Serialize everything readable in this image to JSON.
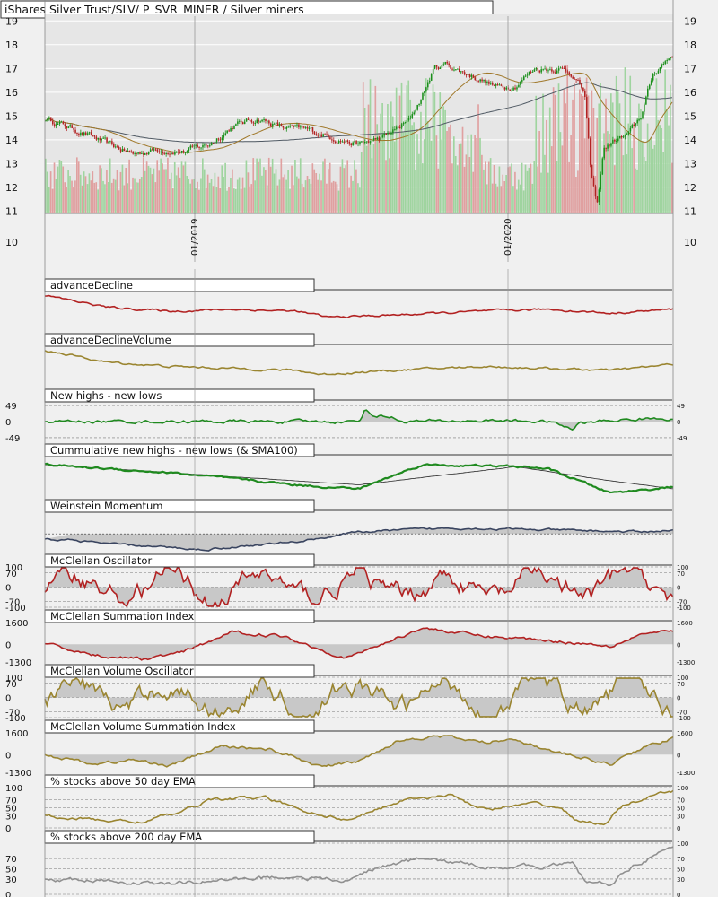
{
  "window_title": "iShares Silver Trust/SLV/ P_SVR_MINER / Silver miners",
  "colors": {
    "background": "#f0f0f0",
    "plot_background": "#e6e6e6",
    "up_candle": "#1a8f1a",
    "down_candle": "#b22222",
    "volume_up": "#9fd49f",
    "volume_down": "#e0a0a0",
    "sma_short": "#a0782a",
    "sma_long": "#505a64",
    "red_line": "#b22222",
    "olive_line": "#9a8530",
    "green_line": "#1f8a1f",
    "navy_line": "#3a4560",
    "gray_line": "#909090",
    "fill": "#c8c8c8"
  },
  "chart_data": [
    {
      "type": "candlestick",
      "name": "price",
      "y_ticks": [
        "19",
        "18",
        "17",
        "16",
        "15",
        "14",
        "13",
        "12",
        "11",
        "10"
      ],
      "ylim": [
        10,
        19.5
      ],
      "x_date_labels": [
        "01/2019",
        "01/2020"
      ],
      "overlays": [
        "SMA short",
        "SMA long",
        "volume bars"
      ],
      "close_keypoints": [
        [
          0,
          14.9
        ],
        [
          3,
          14.6
        ],
        [
          6,
          14.3
        ],
        [
          10,
          13.8
        ],
        [
          14,
          13.4
        ],
        [
          18,
          13.6
        ],
        [
          22,
          13.5
        ],
        [
          26,
          13.8
        ],
        [
          30,
          14.6
        ],
        [
          34,
          14.9
        ],
        [
          38,
          14.5
        ],
        [
          42,
          14.4
        ],
        [
          46,
          14.1
        ],
        [
          50,
          13.8
        ],
        [
          54,
          14.1
        ],
        [
          58,
          14.8
        ],
        [
          60,
          15.8
        ],
        [
          62,
          17.0
        ],
        [
          64,
          17.2
        ],
        [
          66,
          16.9
        ],
        [
          69,
          16.6
        ],
        [
          72,
          16.2
        ],
        [
          75,
          16.3
        ],
        [
          78,
          17.0
        ],
        [
          82,
          17.0
        ],
        [
          84,
          16.8
        ],
        [
          86,
          16.0
        ],
        [
          87,
          12.6
        ],
        [
          88,
          11.2
        ],
        [
          89,
          13.6
        ],
        [
          91,
          14.0
        ],
        [
          93,
          14.2
        ],
        [
          95,
          15.0
        ],
        [
          97,
          16.8
        ],
        [
          100,
          17.6
        ]
      ]
    },
    {
      "type": "line",
      "name": "advanceDecline",
      "title": "advanceDecline",
      "keypoints": [
        [
          0,
          0.9
        ],
        [
          10,
          0.6
        ],
        [
          20,
          0.5
        ],
        [
          30,
          0.55
        ],
        [
          40,
          0.5
        ],
        [
          45,
          0.35
        ],
        [
          55,
          0.4
        ],
        [
          70,
          0.5
        ],
        [
          80,
          0.55
        ],
        [
          90,
          0.45
        ],
        [
          100,
          0.55
        ]
      ]
    },
    {
      "type": "line",
      "name": "advanceDeclineVolume",
      "title": "advanceDeclineVolume",
      "keypoints": [
        [
          0,
          0.9
        ],
        [
          10,
          0.6
        ],
        [
          20,
          0.5
        ],
        [
          30,
          0.45
        ],
        [
          40,
          0.4
        ],
        [
          44,
          0.3
        ],
        [
          55,
          0.4
        ],
        [
          70,
          0.5
        ],
        [
          80,
          0.45
        ],
        [
          90,
          0.4
        ],
        [
          100,
          0.55
        ]
      ]
    },
    {
      "type": "area",
      "name": "new_highs_new_lows",
      "title": "New highs - new lows",
      "y_ticks_left": [
        "49",
        "0",
        "-49"
      ],
      "y_ticks_right": [
        "49",
        "0",
        "-49"
      ],
      "ylim": [
        -60,
        60
      ],
      "keypoints": [
        [
          0,
          0
        ],
        [
          50,
          0
        ],
        [
          51,
          40
        ],
        [
          52,
          20
        ],
        [
          55,
          15
        ],
        [
          57,
          0
        ],
        [
          72,
          3
        ],
        [
          80,
          0
        ],
        [
          82,
          -10
        ],
        [
          84,
          -25
        ],
        [
          85,
          -5
        ],
        [
          88,
          0
        ],
        [
          92,
          5
        ],
        [
          95,
          8
        ],
        [
          100,
          10
        ]
      ]
    },
    {
      "type": "line",
      "name": "cumulative_new_highs_new_lows",
      "title": "Cummulative new highs - new lows (& SMA100)",
      "keypoints": [
        [
          0,
          0.8
        ],
        [
          20,
          0.6
        ],
        [
          40,
          0.3
        ],
        [
          50,
          0.2
        ],
        [
          55,
          0.5
        ],
        [
          60,
          0.8
        ],
        [
          75,
          0.75
        ],
        [
          80,
          0.7
        ],
        [
          85,
          0.4
        ],
        [
          90,
          0.1
        ],
        [
          100,
          0.25
        ]
      ],
      "sma_keypoints": [
        [
          0,
          0.8
        ],
        [
          30,
          0.5
        ],
        [
          50,
          0.3
        ],
        [
          75,
          0.75
        ],
        [
          90,
          0.4
        ],
        [
          100,
          0.2
        ]
      ]
    },
    {
      "type": "area",
      "name": "weinstein_momentum",
      "title": "Weinstein Momentum",
      "keypoints": [
        [
          4,
          0.3
        ],
        [
          10,
          0.2
        ],
        [
          25,
          0.05
        ],
        [
          40,
          0.25
        ],
        [
          50,
          0.5
        ],
        [
          65,
          0.6
        ],
        [
          80,
          0.55
        ],
        [
          95,
          0.5
        ],
        [
          100,
          0.55
        ]
      ]
    },
    {
      "type": "oscillator",
      "name": "mcclellan_oscillator",
      "title": "McClellan Oscillator",
      "y_ticks_left": [
        "100",
        "70",
        "0",
        "-70",
        "-100"
      ],
      "y_ticks_right": [
        "100",
        "70",
        "0",
        "-70",
        "-100"
      ],
      "ylim": [
        -100,
        100
      ]
    },
    {
      "type": "area",
      "name": "mcclellan_summation_index",
      "title": "McClellan Summation Index",
      "y_ticks_left": [
        "1600",
        "0",
        "-1300"
      ],
      "y_ticks_right": [
        "1600",
        "0",
        "-1300"
      ],
      "ylim": [
        -1300,
        1600
      ],
      "keypoints": [
        [
          0,
          0
        ],
        [
          8,
          -800
        ],
        [
          16,
          -1100
        ],
        [
          22,
          -600
        ],
        [
          30,
          900
        ],
        [
          38,
          600
        ],
        [
          44,
          -400
        ],
        [
          48,
          -1000
        ],
        [
          52,
          -300
        ],
        [
          60,
          1200
        ],
        [
          70,
          600
        ],
        [
          80,
          300
        ],
        [
          90,
          -100
        ],
        [
          95,
          800
        ],
        [
          100,
          900
        ]
      ]
    },
    {
      "type": "oscillator",
      "name": "mcclellan_volume_oscillator",
      "title": "McClellan Volume Oscillator",
      "y_ticks_left": [
        "100",
        "70",
        "0",
        "-70",
        "-100"
      ],
      "y_ticks_right": [
        "100",
        "70",
        "0",
        "-70",
        "-100"
      ],
      "ylim": [
        -100,
        100
      ]
    },
    {
      "type": "area",
      "name": "mcclellan_volume_summation_index",
      "title": "McClellan Volume Summation Index",
      "y_ticks_left": [
        "1600",
        "0",
        "-1300"
      ],
      "y_ticks_right": [
        "1600",
        "0",
        "-1300"
      ],
      "ylim": [
        -1300,
        1600
      ],
      "keypoints": [
        [
          0,
          0
        ],
        [
          8,
          -700
        ],
        [
          14,
          -400
        ],
        [
          20,
          -800
        ],
        [
          28,
          600
        ],
        [
          36,
          400
        ],
        [
          44,
          -900
        ],
        [
          50,
          -500
        ],
        [
          56,
          1000
        ],
        [
          62,
          1400
        ],
        [
          70,
          900
        ],
        [
          75,
          1200
        ],
        [
          80,
          300
        ],
        [
          86,
          -300
        ],
        [
          90,
          -700
        ],
        [
          95,
          500
        ],
        [
          100,
          1200
        ]
      ]
    },
    {
      "type": "line",
      "name": "pct_above_50ema",
      "title": "% stocks above 50 day EMA",
      "y_ticks_left": [
        "100",
        "70",
        "50",
        "30",
        "0"
      ],
      "y_ticks_right": [
        "100",
        "70",
        "50",
        "30",
        "0"
      ],
      "ylim": [
        0,
        100
      ],
      "keypoints": [
        [
          0,
          30
        ],
        [
          8,
          20
        ],
        [
          15,
          15
        ],
        [
          22,
          40
        ],
        [
          26,
          70
        ],
        [
          35,
          75
        ],
        [
          42,
          40
        ],
        [
          48,
          20
        ],
        [
          52,
          40
        ],
        [
          58,
          75
        ],
        [
          65,
          80
        ],
        [
          70,
          45
        ],
        [
          78,
          60
        ],
        [
          82,
          50
        ],
        [
          85,
          15
        ],
        [
          89,
          10
        ],
        [
          92,
          55
        ],
        [
          96,
          75
        ],
        [
          100,
          90
        ]
      ]
    },
    {
      "type": "line",
      "name": "pct_above_200ema",
      "title": "% stocks above 200 day EMA",
      "y_ticks_left": [
        "70",
        "50",
        "30",
        "0"
      ],
      "y_ticks_right": [
        "100",
        "70",
        "50",
        "30",
        "0"
      ],
      "ylim": [
        0,
        100
      ],
      "keypoints": [
        [
          0,
          30
        ],
        [
          10,
          25
        ],
        [
          20,
          20
        ],
        [
          30,
          30
        ],
        [
          40,
          35
        ],
        [
          48,
          25
        ],
        [
          52,
          50
        ],
        [
          60,
          70
        ],
        [
          70,
          55
        ],
        [
          78,
          55
        ],
        [
          84,
          60
        ],
        [
          86,
          25
        ],
        [
          90,
          20
        ],
        [
          94,
          60
        ],
        [
          98,
          80
        ],
        [
          100,
          90
        ]
      ]
    }
  ]
}
